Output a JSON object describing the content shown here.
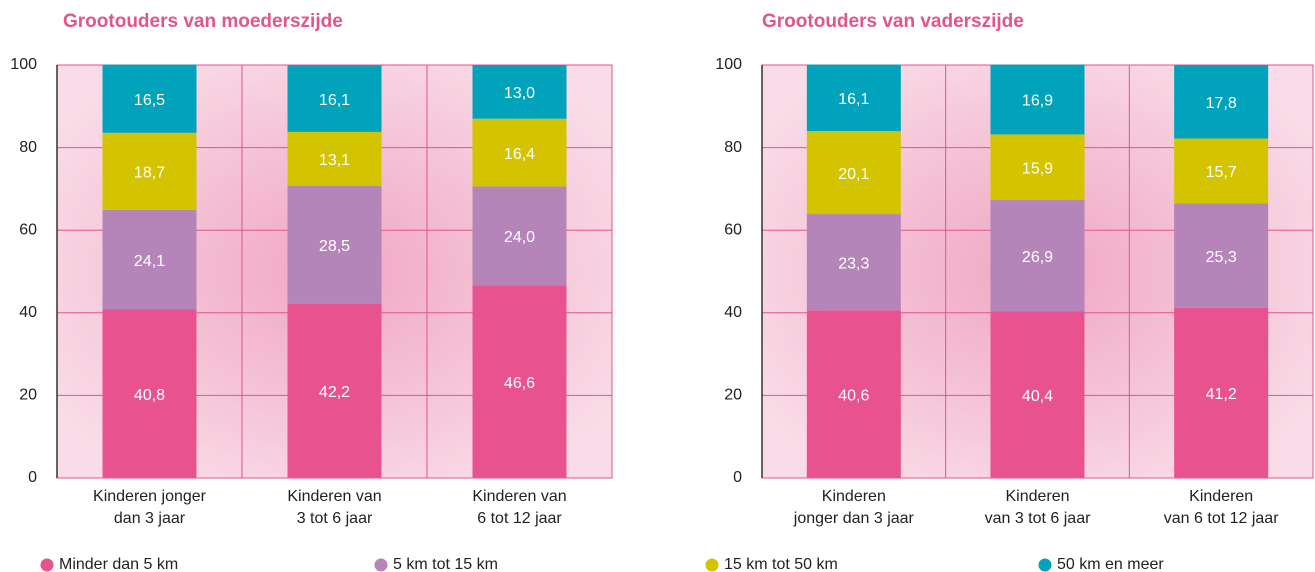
{
  "chart_data": [
    {
      "type": "stacked_bar",
      "title": "Grootouders van moederszijde",
      "categories": [
        [
          "Kinderen jonger",
          "dan 3 jaar"
        ],
        [
          "Kinderen van",
          "3 tot 6 jaar"
        ],
        [
          "Kinderen van",
          "6 tot 12 jaar"
        ]
      ],
      "series": [
        {
          "name": "Minder dan 5 km",
          "color": "#e8538f",
          "values": [
            40.8,
            42.2,
            46.6
          ],
          "value_labels": [
            "40,8",
            "42,2",
            "46,6"
          ]
        },
        {
          "name": "5 km tot 15 km",
          "color": "#b585ba",
          "values": [
            24.1,
            28.5,
            24.0
          ],
          "value_labels": [
            "24,1",
            "28,5",
            "24,0"
          ]
        },
        {
          "name": "15 km tot 50 km",
          "color": "#d4c400",
          "values": [
            18.7,
            13.1,
            16.4
          ],
          "value_labels": [
            "18,7",
            "13,1",
            "16,4"
          ]
        },
        {
          "name": "50 km en meer",
          "color": "#00a3bb",
          "values": [
            16.5,
            16.1,
            13.0
          ],
          "value_labels": [
            "16,5",
            "16,1",
            "13,0"
          ]
        }
      ],
      "ylim": [
        0,
        100
      ],
      "yticks": [
        0,
        20,
        40,
        60,
        80,
        100
      ],
      "grid": true
    },
    {
      "type": "stacked_bar",
      "title": "Grootouders van vaderszijde",
      "categories": [
        [
          "Kinderen",
          "jonger dan 3 jaar"
        ],
        [
          "Kinderen",
          "van 3 tot 6 jaar"
        ],
        [
          "Kinderen",
          "van 6 tot 12 jaar"
        ]
      ],
      "series": [
        {
          "color": "#e8538f",
          "values": [
            40.6,
            40.4,
            41.2
          ],
          "value_labels": [
            "40,6",
            "40,4",
            "41,2"
          ]
        },
        {
          "color": "#b585ba",
          "values": [
            23.3,
            26.9,
            25.3
          ],
          "value_labels": [
            "23,3",
            "26,9",
            "25,3"
          ]
        },
        {
          "color": "#d4c400",
          "values": [
            20.1,
            15.9,
            15.7
          ],
          "value_labels": [
            "20,1",
            "15,9",
            "15,7"
          ]
        },
        {
          "color": "#00a3bb",
          "values": [
            16.1,
            16.9,
            17.8
          ],
          "value_labels": [
            "16,1",
            "16,9",
            "17,8"
          ]
        }
      ],
      "ylim": [
        0,
        100
      ],
      "yticks": [
        0,
        20,
        40,
        60,
        80,
        100
      ],
      "grid": true
    }
  ]
}
